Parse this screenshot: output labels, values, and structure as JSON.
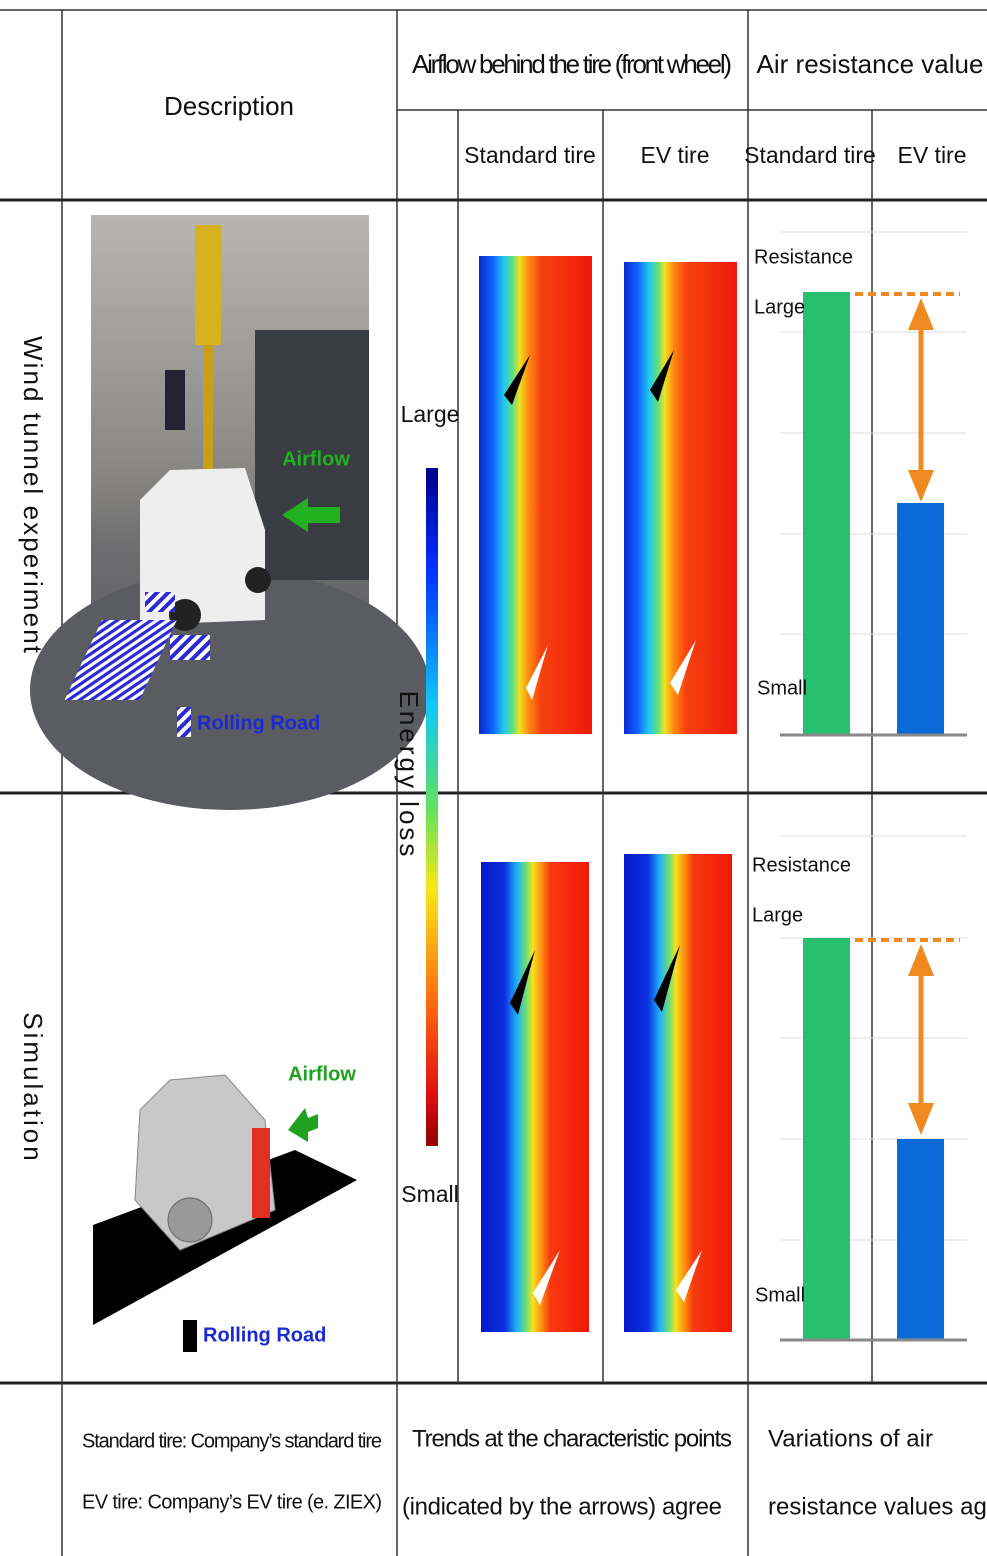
{
  "header": {
    "description": "Description",
    "airflow": "Airflow behind the tire (front wheel)",
    "resistance": "Air resistance value",
    "airflow_cols": [
      "Standard tire",
      "EV tire"
    ],
    "resistance_cols": [
      "Standard tire",
      "EV tire"
    ]
  },
  "rows": [
    {
      "label": "Wind tunnel experiment",
      "airflow_label": "Airflow",
      "road_label": "Rolling Road",
      "chart": {
        "axis_title": "Resistance",
        "large": "Large",
        "small": "Small"
      }
    },
    {
      "label": "Simulation",
      "airflow_label": "Airflow",
      "road_label": "Rolling Road",
      "chart": {
        "axis_title": "Resistance",
        "large": "Large",
        "small": "Small"
      }
    }
  ],
  "colorbar": {
    "large": "Large",
    "title": "Energy loss",
    "small": "Small"
  },
  "footer": {
    "description": [
      "Standard tire: Company’s standard tire",
      "EV tire: Company’s EV tire (e. ZIEX)"
    ],
    "airflow": [
      "Trends at the characteristic points",
      "(indicated by the arrows) agree"
    ],
    "resistance": [
      "Variations of air",
      "resistance values agree"
    ]
  }
}
